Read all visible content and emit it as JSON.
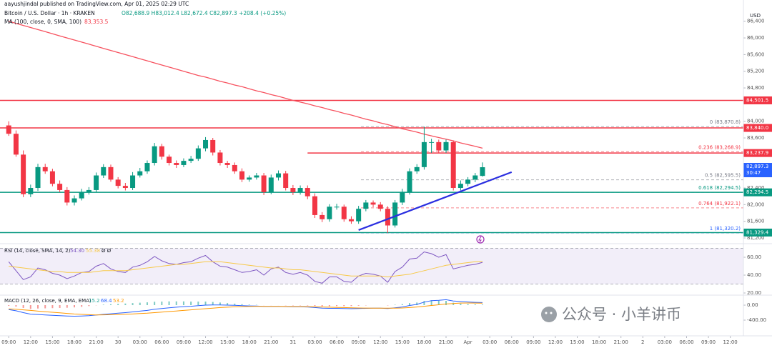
{
  "header": {
    "publisher": "aayushjindal published on TradingView.com, Apr 01, 2025 02:29 UTC",
    "symbol": "Bitcoin / U.S. Dollar · 1h · KRAKEN",
    "ohlc": "O82,688.9 H83,012.4 L82,672.4 C82,897.3 +208.4 (+0.25%)",
    "ma_label": "MA (100, close, 0, SMA, 100)",
    "ma_value": "83,353.5",
    "currency": "USD",
    "watermark": "公众号 · 小羊讲币"
  },
  "chart_data": [
    {
      "type": "candlestick",
      "up_color": "#089981",
      "down_color": "#f23645",
      "xlim": [
        -1.2,
        100.8
      ],
      "ylim": [
        81080,
        86910
      ],
      "xticks": [
        {
          "value": 0,
          "label": "09:00"
        },
        {
          "value": 3,
          "label": "12:00"
        },
        {
          "value": 6,
          "label": "15:00"
        },
        {
          "value": 9,
          "label": "18:00"
        },
        {
          "value": 12,
          "label": "21:00"
        },
        {
          "value": 15,
          "label": "30"
        },
        {
          "value": 18,
          "label": "03:00"
        },
        {
          "value": 21,
          "label": "06:00"
        },
        {
          "value": 24,
          "label": "09:00"
        },
        {
          "value": 27,
          "label": "12:00"
        },
        {
          "value": 30,
          "label": "15:00"
        },
        {
          "value": 33,
          "label": "18:00"
        },
        {
          "value": 36,
          "label": "21:00"
        },
        {
          "value": 39,
          "label": "31"
        },
        {
          "value": 42,
          "label": "03:00"
        },
        {
          "value": 45,
          "label": "06:00"
        },
        {
          "value": 48,
          "label": "09:00"
        },
        {
          "value": 51,
          "label": "12:00"
        },
        {
          "value": 54,
          "label": "15:00"
        },
        {
          "value": 57,
          "label": "18:00"
        },
        {
          "value": 60,
          "label": "21:00"
        },
        {
          "value": 63,
          "label": "Apr"
        },
        {
          "value": 66,
          "label": "03:00"
        },
        {
          "value": 69,
          "label": "06:00"
        },
        {
          "value": 72,
          "label": "09:00"
        },
        {
          "value": 75,
          "label": "12:00"
        },
        {
          "value": 78,
          "label": "15:00"
        },
        {
          "value": 81,
          "label": "18:00"
        },
        {
          "value": 84,
          "label": "21:00"
        },
        {
          "value": 87,
          "label": "2"
        },
        {
          "value": 90,
          "label": "03:00"
        },
        {
          "value": 93,
          "label": "06:00"
        },
        {
          "value": 96,
          "label": "09:00"
        },
        {
          "value": 99,
          "label": "12:00"
        }
      ],
      "yticks": [
        {
          "value": 86400,
          "label": "86,400"
        },
        {
          "value": 86000,
          "label": "86,000"
        },
        {
          "value": 85600,
          "label": "85,600"
        },
        {
          "value": 85200,
          "label": "85,200"
        },
        {
          "value": 84800,
          "label": "84,800"
        },
        {
          "value": 84000,
          "label": "84,000"
        },
        {
          "value": 83600,
          "label": "83,600"
        },
        {
          "value": 82400,
          "label": "82,400"
        },
        {
          "value": 82000,
          "label": "82,000"
        },
        {
          "value": 81600,
          "label": "81,600"
        },
        {
          "value": 81200,
          "label": "81,200"
        }
      ],
      "open": [
        83900,
        83700,
        83200,
        82250,
        82400,
        82900,
        82800,
        82500,
        82350,
        82050,
        82150,
        82300,
        82350,
        82700,
        82900,
        82600,
        82450,
        82400,
        82700,
        82800,
        83000,
        83400,
        83150,
        83000,
        82950,
        83050,
        83100,
        83350,
        83550,
        83250,
        83000,
        82950,
        82800,
        82600,
        82650,
        82700,
        82300,
        82650,
        82750,
        82400,
        82300,
        82400,
        82200,
        81750,
        81650,
        81950,
        81950,
        81650,
        81600,
        81900,
        82050,
        82000,
        81900,
        81500,
        82050,
        82300,
        82800,
        82900,
        83500,
        83500,
        83300,
        83500,
        82400,
        82500,
        82600,
        82688.9
      ],
      "high": [
        84000,
        83780,
        83300,
        82480,
        82980,
        82980,
        82860,
        82580,
        82420,
        82220,
        82380,
        82420,
        82770,
        82970,
        82960,
        82660,
        82520,
        82780,
        82880,
        83060,
        83480,
        83460,
        83200,
        83060,
        83110,
        83170,
        83420,
        83620,
        83600,
        83310,
        83050,
        83010,
        82870,
        82700,
        82760,
        82760,
        82720,
        82820,
        82810,
        82470,
        82460,
        82460,
        82270,
        81820,
        82010,
        82020,
        82000,
        81720,
        81970,
        82110,
        82100,
        82060,
        81960,
        82110,
        82380,
        82870,
        82970,
        83870.8,
        83580,
        83560,
        83560,
        83540,
        82580,
        82660,
        82760,
        83012.4
      ],
      "low": [
        83650,
        83150,
        82180,
        82180,
        82330,
        82740,
        82440,
        82300,
        81980,
        81980,
        82100,
        82240,
        82300,
        82640,
        82550,
        82390,
        82340,
        82350,
        82650,
        82740,
        82940,
        83080,
        82940,
        82880,
        82900,
        83000,
        83050,
        83280,
        83180,
        82940,
        82880,
        82740,
        82540,
        82550,
        82600,
        82230,
        82250,
        82580,
        82340,
        82230,
        82240,
        82130,
        81680,
        81580,
        81590,
        81880,
        81590,
        81540,
        81540,
        81840,
        81940,
        81840,
        81320.2,
        81450,
        81990,
        82240,
        82740,
        82840,
        83240,
        83240,
        83240,
        82340,
        82340,
        82440,
        82540,
        82672.4
      ],
      "close": [
        83700,
        83200,
        82250,
        82400,
        82900,
        82800,
        82500,
        82350,
        82050,
        82150,
        82300,
        82350,
        82700,
        82900,
        82600,
        82450,
        82400,
        82700,
        82800,
        83000,
        83400,
        83150,
        83000,
        82950,
        83050,
        83100,
        83350,
        83550,
        83250,
        83000,
        82950,
        82800,
        82600,
        82650,
        82700,
        82300,
        82650,
        82750,
        82400,
        82300,
        82400,
        82200,
        81750,
        81650,
        81950,
        81950,
        81650,
        81600,
        81900,
        82050,
        82000,
        81900,
        81500,
        82050,
        82300,
        82800,
        82900,
        83500,
        83500,
        83300,
        83500,
        82400,
        82500,
        82600,
        82700,
        82897.3
      ],
      "ma": {
        "color": "#f7525f",
        "values": [
          86400,
          86350,
          86300,
          86250,
          86200,
          86150,
          86100,
          86050,
          86000,
          85950,
          85900,
          85850,
          85800,
          85750,
          85700,
          85650,
          85600,
          85550,
          85500,
          85450,
          85400,
          85350,
          85300,
          85250,
          85200,
          85150,
          85100,
          85060,
          85010,
          84960,
          84920,
          84870,
          84830,
          84780,
          84730,
          84690,
          84640,
          84600,
          84550,
          84500,
          84460,
          84420,
          84370,
          84330,
          84280,
          84240,
          84190,
          84150,
          84100,
          84050,
          84010,
          83960,
          83920,
          83870,
          83820,
          83780,
          83740,
          83690,
          83650,
          83610,
          83570,
          83530,
          83480,
          83440,
          83400,
          83353.5
        ]
      },
      "levels": [
        {
          "value": 84501.5,
          "label": "84,501.5",
          "color": "#f23645"
        },
        {
          "value": 83840.0,
          "label": "83,840.0",
          "color": "#f23645"
        },
        {
          "value": 83237.9,
          "label": "83,237.9",
          "color": "#f23645",
          "start": 41
        },
        {
          "value": 82294.5,
          "label": "82,294.5",
          "color": "#089981"
        },
        {
          "value": 81329.4,
          "label": "81,329.4",
          "color": "#089981"
        }
      ],
      "fib": [
        {
          "value": 83870.8,
          "label": "0 (83,870.8)",
          "color": "#787b86"
        },
        {
          "value": 83268.9,
          "label": "0.236 (83,268.9)",
          "color": "#f23645"
        },
        {
          "value": 82595.5,
          "label": "0.5 (82,595.5)",
          "color": "#787b86"
        },
        {
          "value": 82294.5,
          "label": "0.618 (82,294.5)",
          "color": "#089981"
        },
        {
          "value": 81922.1,
          "label": "0.764 (81,922.1)",
          "color": "#f23645"
        },
        {
          "value": 81320.2,
          "label": "1 (81,320.2)",
          "color": "#2962ff"
        }
      ],
      "trendline": {
        "color": "#2a2ee0",
        "start": [
          48,
          81390
        ],
        "end": [
          69,
          82780
        ]
      },
      "last_price": {
        "label": "82,897.3",
        "countdown": "30:47",
        "color": "#2962ff"
      }
    },
    {
      "type": "line",
      "title": "RSI (14, close, SMA, 14, 2)",
      "flags": "Ø  Ø",
      "ylim": [
        18.4,
        73.6
      ],
      "band": [
        30,
        70
      ],
      "yticks": [
        {
          "value": 20,
          "label": "20.00"
        },
        {
          "value": 40,
          "label": "40.00"
        },
        {
          "value": 60,
          "label": "60.00"
        }
      ],
      "series": [
        {
          "last_label": "54.30",
          "color": "#7e57c2",
          "values": [
            55,
            45,
            35,
            38,
            48,
            46,
            42,
            40,
            36,
            39,
            43,
            44,
            50,
            53,
            47,
            44,
            43,
            49,
            51,
            55,
            61,
            56,
            53,
            52,
            54,
            55,
            59,
            62,
            55,
            50,
            49,
            46,
            43,
            44,
            46,
            40,
            47,
            49,
            43,
            41,
            43,
            40,
            33,
            31,
            38,
            38,
            33,
            32,
            39,
            42,
            41,
            39,
            32,
            44,
            49,
            58,
            59,
            66,
            64,
            60,
            63,
            47,
            49,
            51,
            52,
            54.3
          ]
        },
        {
          "last_label": "55.38",
          "color": "#f7c948",
          "values": [
            50,
            49,
            48,
            47,
            46,
            45,
            44,
            44,
            43,
            43,
            43,
            43,
            44,
            45,
            45,
            45,
            45,
            46,
            47,
            48,
            49,
            50,
            51,
            52,
            52,
            53,
            54,
            55,
            55,
            55,
            54,
            53,
            52,
            51,
            50,
            49,
            48,
            48,
            47,
            46,
            46,
            45,
            44,
            43,
            42,
            41,
            40,
            39,
            39,
            39,
            39,
            39,
            38,
            39,
            40,
            41,
            43,
            45,
            47,
            49,
            51,
            52,
            53,
            54,
            55,
            55.38
          ]
        }
      ]
    },
    {
      "type": "macd",
      "title": "MACD (12, 26, close, 9, EMA, EMA)",
      "ylim": [
        -819,
        229
      ],
      "yticks": [
        {
          "value": 0,
          "label": "0.00"
        },
        {
          "value": -400,
          "label": "-400.00"
        }
      ],
      "histogram": {
        "last_label": "15.2",
        "up_color": "#26a69a",
        "down_color": "#ef5350",
        "values": [
          -20,
          -40,
          -75,
          -100,
          -90,
          -85,
          -80,
          -75,
          -70,
          -60,
          -45,
          -25,
          -5,
          13,
          25,
          35,
          43,
          55,
          65,
          75,
          90,
          95,
          100,
          100,
          100,
          95,
          95,
          95,
          85,
          70,
          55,
          40,
          25,
          15,
          8,
          -2,
          -2,
          -1,
          -5,
          -8,
          -7,
          -10,
          -20,
          -30,
          -30,
          -25,
          -25,
          -25,
          -15,
          -7,
          0,
          0,
          -8,
          10,
          25,
          55,
          70,
          110,
          130,
          120,
          115,
          65,
          40,
          27,
          20,
          15.2
        ]
      },
      "macd": {
        "last_label": "68.4",
        "color": "#2962ff",
        "values": [
          -120,
          -150,
          -200,
          -240,
          -250,
          -260,
          -270,
          -280,
          -290,
          -295,
          -290,
          -280,
          -265,
          -245,
          -230,
          -215,
          -200,
          -180,
          -160,
          -140,
          -110,
          -90,
          -70,
          -55,
          -40,
          -30,
          -15,
          0,
          5,
          5,
          0,
          -5,
          -15,
          -20,
          -25,
          -35,
          -35,
          -35,
          -40,
          -45,
          -45,
          -50,
          -65,
          -80,
          -85,
          -85,
          -90,
          -95,
          -90,
          -85,
          -80,
          -80,
          -90,
          -70,
          -50,
          -10,
          20,
          80,
          120,
          130,
          145,
          110,
          95,
          85,
          75,
          68.4
        ]
      },
      "signal": {
        "last_label": "53.2",
        "color": "#ff9800",
        "values": [
          -100,
          -110,
          -125,
          -140,
          -160,
          -175,
          -190,
          -205,
          -220,
          -235,
          -245,
          -255,
          -260,
          -258,
          -255,
          -250,
          -243,
          -235,
          -225,
          -215,
          -200,
          -185,
          -170,
          -155,
          -140,
          -125,
          -110,
          -95,
          -80,
          -65,
          -55,
          -45,
          -40,
          -35,
          -33,
          -33,
          -33,
          -34,
          -35,
          -37,
          -38,
          -40,
          -45,
          -50,
          -55,
          -60,
          -65,
          -70,
          -75,
          -78,
          -80,
          -80,
          -82,
          -80,
          -75,
          -65,
          -50,
          -30,
          -10,
          10,
          30,
          45,
          55,
          58,
          55,
          53.2
        ]
      }
    }
  ]
}
